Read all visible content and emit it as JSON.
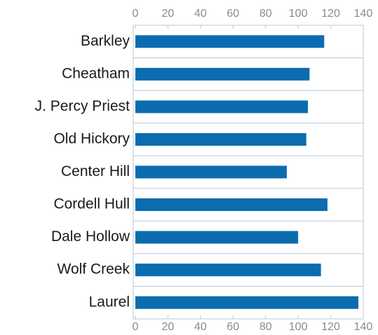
{
  "chart_data": {
    "type": "barh",
    "categories": [
      "Barkley",
      "Cheatham",
      "J. Percy Priest",
      "Old Hickory",
      "Center Hill",
      "Cordell Hull",
      "Dale Hollow",
      "Wolf Creek",
      "Laurel"
    ],
    "values": [
      116,
      107,
      106,
      105,
      93,
      118,
      100,
      114,
      137
    ],
    "color": "#0b6cb0",
    "xlim": [
      0,
      140
    ],
    "xticks": [
      0,
      20,
      40,
      60,
      80,
      100,
      120,
      140
    ]
  }
}
